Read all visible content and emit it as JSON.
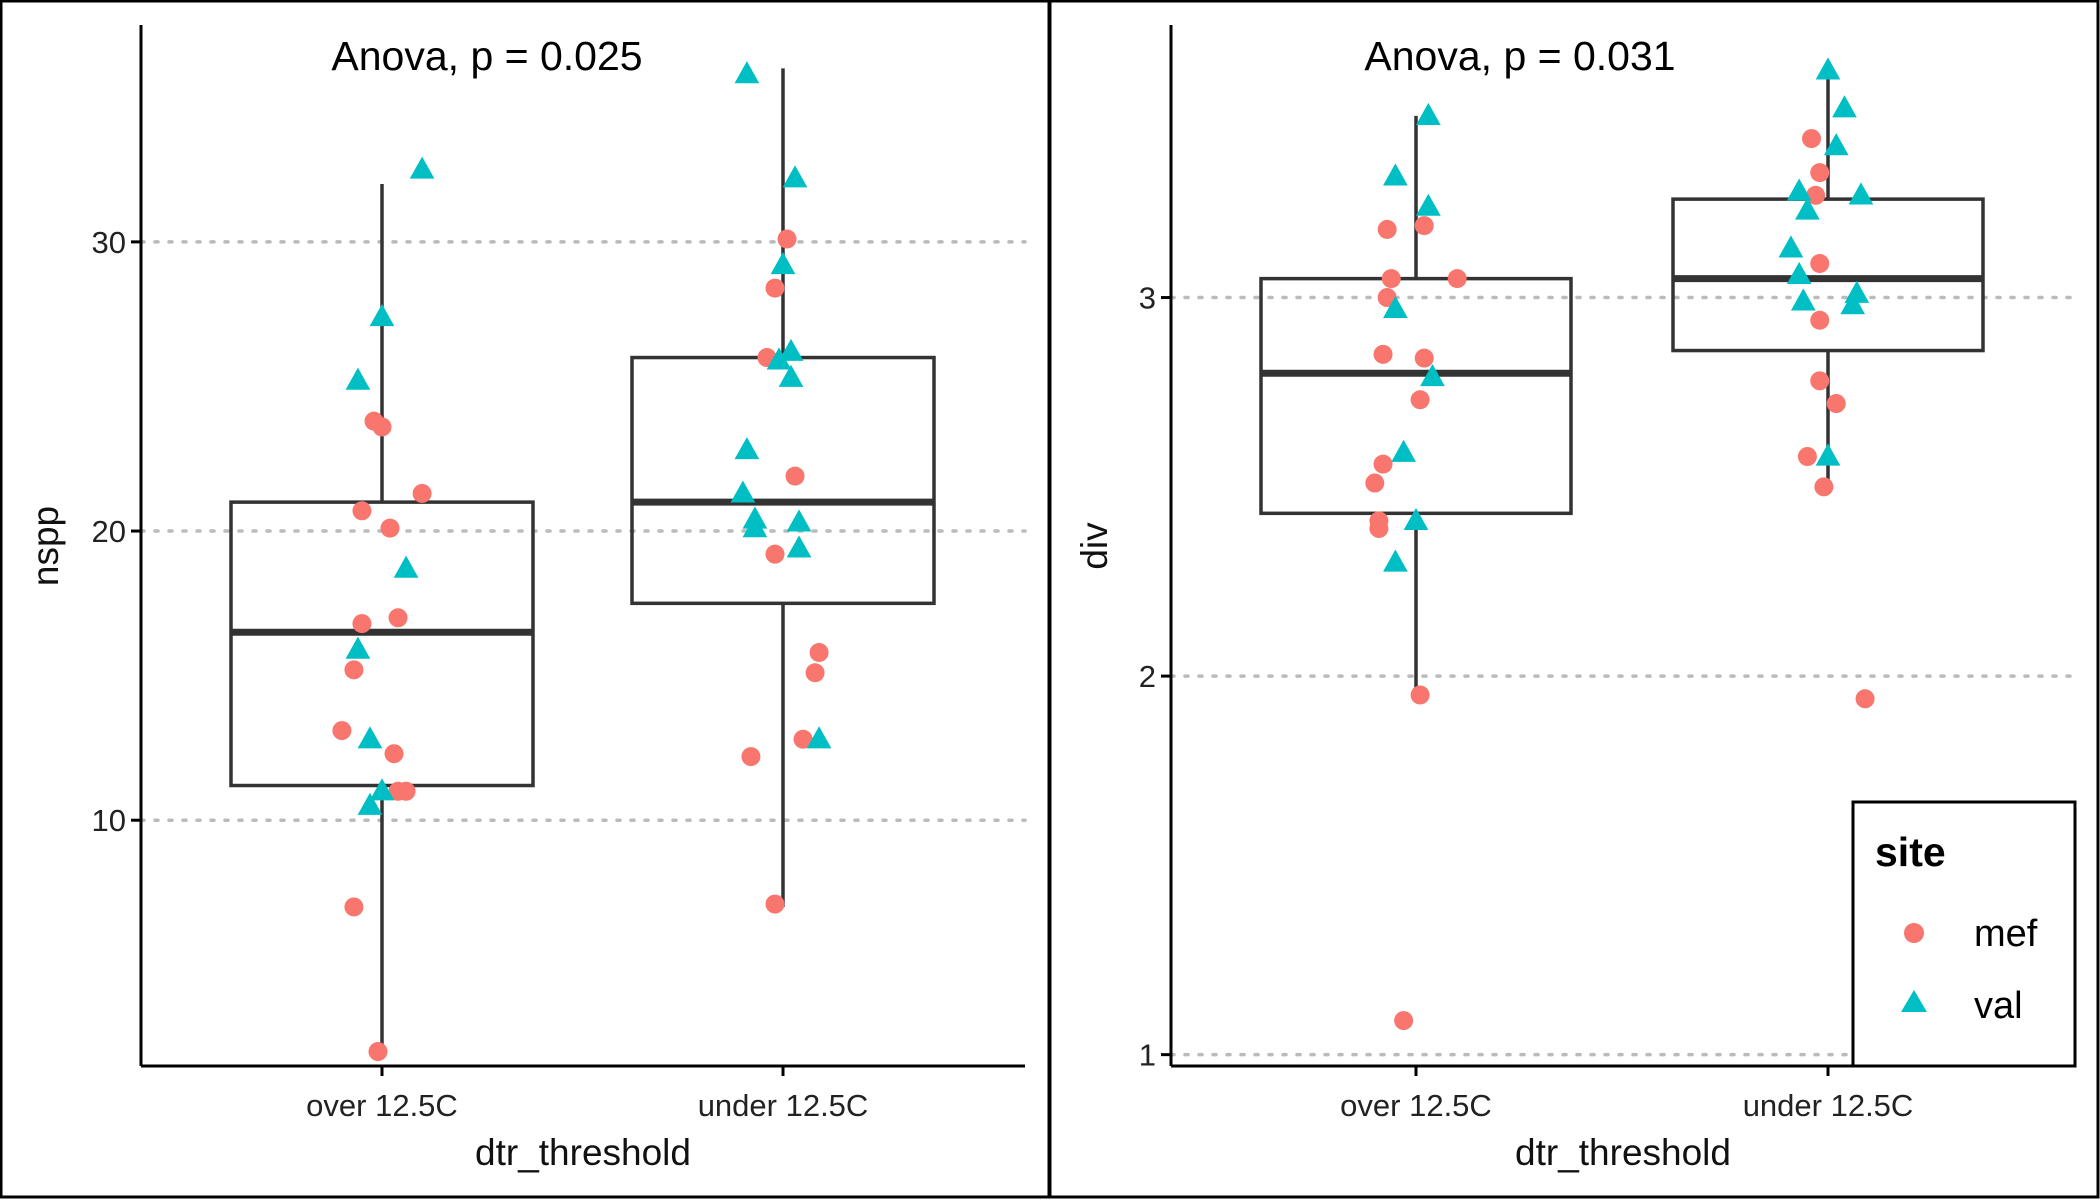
{
  "chart_data": [
    {
      "type": "boxplot",
      "xlabel": "dtr_threshold",
      "ylabel": "nspp",
      "annotation": "Anova, p = 0.025",
      "categories": [
        "over 12.5C",
        "under 12.5C"
      ],
      "y_ticks": [
        "10",
        "20",
        "30"
      ],
      "ylim": [
        1.5,
        37.5
      ],
      "grid_major_y": true,
      "boxes": [
        {
          "category": "over 12.5C",
          "min": 2,
          "q1": 11.2,
          "median": 16.5,
          "q3": 21,
          "max": 32
        },
        {
          "category": "under 12.5C",
          "min": 7,
          "q1": 17.5,
          "median": 21,
          "q3": 26,
          "max": 36
        }
      ],
      "points": [
        {
          "category": "over 12.5C",
          "site": "mef",
          "x_jitter": -0.05,
          "y": 20.7
        },
        {
          "category": "over 12.5C",
          "site": "mef",
          "x_jitter": -0.02,
          "y": 23.8
        },
        {
          "category": "over 12.5C",
          "site": "mef",
          "x_jitter": 0.0,
          "y": 23.6
        },
        {
          "category": "over 12.5C",
          "site": "mef",
          "x_jitter": 0.02,
          "y": 20.1
        },
        {
          "category": "over 12.5C",
          "site": "mef",
          "x_jitter": 0.1,
          "y": 21.3
        },
        {
          "category": "over 12.5C",
          "site": "mef",
          "x_jitter": -0.05,
          "y": 16.8
        },
        {
          "category": "over 12.5C",
          "site": "mef",
          "x_jitter": 0.04,
          "y": 17.0
        },
        {
          "category": "over 12.5C",
          "site": "mef",
          "x_jitter": -0.07,
          "y": 15.2
        },
        {
          "category": "over 12.5C",
          "site": "mef",
          "x_jitter": -0.1,
          "y": 13.1
        },
        {
          "category": "over 12.5C",
          "site": "mef",
          "x_jitter": 0.03,
          "y": 12.3
        },
        {
          "category": "over 12.5C",
          "site": "mef",
          "x_jitter": 0.04,
          "y": 11.0
        },
        {
          "category": "over 12.5C",
          "site": "mef",
          "x_jitter": 0.06,
          "y": 11.0
        },
        {
          "category": "over 12.5C",
          "site": "mef",
          "x_jitter": -0.07,
          "y": 7.0
        },
        {
          "category": "over 12.5C",
          "site": "mef",
          "x_jitter": -0.01,
          "y": 2.0
        },
        {
          "category": "over 12.5C",
          "site": "val",
          "x_jitter": 0.1,
          "y": 32.5
        },
        {
          "category": "over 12.5C",
          "site": "val",
          "x_jitter": 0.0,
          "y": 27.4
        },
        {
          "category": "over 12.5C",
          "site": "val",
          "x_jitter": -0.06,
          "y": 25.2
        },
        {
          "category": "over 12.5C",
          "site": "val",
          "x_jitter": 0.06,
          "y": 18.7
        },
        {
          "category": "over 12.5C",
          "site": "val",
          "x_jitter": -0.06,
          "y": 15.9
        },
        {
          "category": "over 12.5C",
          "site": "val",
          "x_jitter": -0.03,
          "y": 12.8
        },
        {
          "category": "over 12.5C",
          "site": "val",
          "x_jitter": 0.0,
          "y": 11.0
        },
        {
          "category": "over 12.5C",
          "site": "val",
          "x_jitter": -0.03,
          "y": 10.5
        },
        {
          "category": "under 12.5C",
          "site": "mef",
          "x_jitter": 0.01,
          "y": 30.1
        },
        {
          "category": "under 12.5C",
          "site": "mef",
          "x_jitter": -0.02,
          "y": 28.4
        },
        {
          "category": "under 12.5C",
          "site": "mef",
          "x_jitter": -0.04,
          "y": 26.0
        },
        {
          "category": "under 12.5C",
          "site": "mef",
          "x_jitter": 0.03,
          "y": 21.9
        },
        {
          "category": "under 12.5C",
          "site": "mef",
          "x_jitter": -0.02,
          "y": 19.2
        },
        {
          "category": "under 12.5C",
          "site": "mef",
          "x_jitter": 0.09,
          "y": 15.8
        },
        {
          "category": "under 12.5C",
          "site": "mef",
          "x_jitter": 0.08,
          "y": 15.1
        },
        {
          "category": "under 12.5C",
          "site": "mef",
          "x_jitter": 0.05,
          "y": 12.8
        },
        {
          "category": "under 12.5C",
          "site": "mef",
          "x_jitter": -0.08,
          "y": 12.2
        },
        {
          "category": "under 12.5C",
          "site": "mef",
          "x_jitter": -0.02,
          "y": 7.1
        },
        {
          "category": "under 12.5C",
          "site": "val",
          "x_jitter": -0.09,
          "y": 35.8
        },
        {
          "category": "under 12.5C",
          "site": "val",
          "x_jitter": 0.03,
          "y": 32.2
        },
        {
          "category": "under 12.5C",
          "site": "val",
          "x_jitter": 0.0,
          "y": 29.2
        },
        {
          "category": "under 12.5C",
          "site": "val",
          "x_jitter": 0.02,
          "y": 26.2
        },
        {
          "category": "under 12.5C",
          "site": "val",
          "x_jitter": -0.01,
          "y": 25.9
        },
        {
          "category": "under 12.5C",
          "site": "val",
          "x_jitter": 0.02,
          "y": 25.3
        },
        {
          "category": "under 12.5C",
          "site": "val",
          "x_jitter": -0.09,
          "y": 22.8
        },
        {
          "category": "under 12.5C",
          "site": "val",
          "x_jitter": -0.1,
          "y": 21.3
        },
        {
          "category": "under 12.5C",
          "site": "val",
          "x_jitter": -0.07,
          "y": 20.4
        },
        {
          "category": "under 12.5C",
          "site": "val",
          "x_jitter": -0.07,
          "y": 20.1
        },
        {
          "category": "under 12.5C",
          "site": "val",
          "x_jitter": 0.04,
          "y": 20.3
        },
        {
          "category": "under 12.5C",
          "site": "val",
          "x_jitter": 0.04,
          "y": 19.4
        },
        {
          "category": "under 12.5C",
          "site": "val",
          "x_jitter": 0.09,
          "y": 12.8
        }
      ]
    },
    {
      "type": "boxplot",
      "xlabel": "dtr_threshold",
      "ylabel": "div",
      "annotation": "Anova, p = 0.031",
      "categories": [
        "over 12.5C",
        "under 12.5C"
      ],
      "y_ticks": [
        "1",
        "2",
        "3"
      ],
      "ylim": [
        0.97,
        3.72
      ],
      "grid_major_y": true,
      "boxes": [
        {
          "category": "over 12.5C",
          "min": 1.95,
          "q1": 2.43,
          "median": 2.8,
          "q3": 3.05,
          "max": 3.48
        },
        {
          "category": "under 12.5C",
          "min": 2.5,
          "q1": 2.86,
          "median": 3.05,
          "q3": 3.26,
          "max": 3.6
        }
      ],
      "points": [
        {
          "category": "over 12.5C",
          "site": "mef",
          "x_jitter": -0.07,
          "y": 3.18
        },
        {
          "category": "over 12.5C",
          "site": "mef",
          "x_jitter": 0.02,
          "y": 3.19
        },
        {
          "category": "over 12.5C",
          "site": "mef",
          "x_jitter": -0.06,
          "y": 3.05
        },
        {
          "category": "over 12.5C",
          "site": "mef",
          "x_jitter": 0.1,
          "y": 3.05
        },
        {
          "category": "over 12.5C",
          "site": "mef",
          "x_jitter": -0.07,
          "y": 3.0
        },
        {
          "category": "over 12.5C",
          "site": "mef",
          "x_jitter": -0.08,
          "y": 2.85
        },
        {
          "category": "over 12.5C",
          "site": "mef",
          "x_jitter": 0.02,
          "y": 2.84
        },
        {
          "category": "over 12.5C",
          "site": "mef",
          "x_jitter": 0.01,
          "y": 2.73
        },
        {
          "category": "over 12.5C",
          "site": "mef",
          "x_jitter": -0.08,
          "y": 2.56
        },
        {
          "category": "over 12.5C",
          "site": "mef",
          "x_jitter": -0.1,
          "y": 2.51
        },
        {
          "category": "over 12.5C",
          "site": "mef",
          "x_jitter": -0.09,
          "y": 2.41
        },
        {
          "category": "over 12.5C",
          "site": "mef",
          "x_jitter": -0.09,
          "y": 2.39
        },
        {
          "category": "over 12.5C",
          "site": "mef",
          "x_jitter": 0.01,
          "y": 1.95
        },
        {
          "category": "over 12.5C",
          "site": "mef",
          "x_jitter": -0.03,
          "y": 1.09
        },
        {
          "category": "over 12.5C",
          "site": "val",
          "x_jitter": 0.03,
          "y": 3.48
        },
        {
          "category": "over 12.5C",
          "site": "val",
          "x_jitter": -0.05,
          "y": 3.32
        },
        {
          "category": "over 12.5C",
          "site": "val",
          "x_jitter": 0.03,
          "y": 3.24
        },
        {
          "category": "over 12.5C",
          "site": "val",
          "x_jitter": -0.05,
          "y": 2.97
        },
        {
          "category": "over 12.5C",
          "site": "val",
          "x_jitter": 0.04,
          "y": 2.79
        },
        {
          "category": "over 12.5C",
          "site": "val",
          "x_jitter": -0.03,
          "y": 2.59
        },
        {
          "category": "over 12.5C",
          "site": "val",
          "x_jitter": 0.0,
          "y": 2.41
        },
        {
          "category": "over 12.5C",
          "site": "val",
          "x_jitter": -0.05,
          "y": 2.3
        },
        {
          "category": "under 12.5C",
          "site": "mef",
          "x_jitter": -0.04,
          "y": 3.42
        },
        {
          "category": "under 12.5C",
          "site": "mef",
          "x_jitter": -0.02,
          "y": 3.33
        },
        {
          "category": "under 12.5C",
          "site": "mef",
          "x_jitter": -0.03,
          "y": 3.27
        },
        {
          "category": "under 12.5C",
          "site": "mef",
          "x_jitter": -0.02,
          "y": 3.09
        },
        {
          "category": "under 12.5C",
          "site": "mef",
          "x_jitter": -0.02,
          "y": 2.94
        },
        {
          "category": "under 12.5C",
          "site": "mef",
          "x_jitter": -0.02,
          "y": 2.78
        },
        {
          "category": "under 12.5C",
          "site": "mef",
          "x_jitter": 0.02,
          "y": 2.72
        },
        {
          "category": "under 12.5C",
          "site": "mef",
          "x_jitter": -0.05,
          "y": 2.58
        },
        {
          "category": "under 12.5C",
          "site": "mef",
          "x_jitter": -0.01,
          "y": 2.5
        },
        {
          "category": "under 12.5C",
          "site": "mef",
          "x_jitter": 0.09,
          "y": 1.94
        },
        {
          "category": "under 12.5C",
          "site": "val",
          "x_jitter": 0.0,
          "y": 3.6
        },
        {
          "category": "under 12.5C",
          "site": "val",
          "x_jitter": 0.04,
          "y": 3.5
        },
        {
          "category": "under 12.5C",
          "site": "val",
          "x_jitter": 0.02,
          "y": 3.4
        },
        {
          "category": "under 12.5C",
          "site": "val",
          "x_jitter": -0.07,
          "y": 3.28
        },
        {
          "category": "under 12.5C",
          "site": "val",
          "x_jitter": 0.08,
          "y": 3.27
        },
        {
          "category": "under 12.5C",
          "site": "val",
          "x_jitter": -0.05,
          "y": 3.23
        },
        {
          "category": "under 12.5C",
          "site": "val",
          "x_jitter": -0.09,
          "y": 3.13
        },
        {
          "category": "under 12.5C",
          "site": "val",
          "x_jitter": -0.07,
          "y": 3.06
        },
        {
          "category": "under 12.5C",
          "site": "val",
          "x_jitter": 0.07,
          "y": 3.01
        },
        {
          "category": "under 12.5C",
          "site": "val",
          "x_jitter": -0.06,
          "y": 2.99
        },
        {
          "category": "under 12.5C",
          "site": "val",
          "x_jitter": 0.06,
          "y": 2.98
        },
        {
          "category": "under 12.5C",
          "site": "val",
          "x_jitter": 0.0,
          "y": 2.58
        }
      ]
    }
  ],
  "legend": {
    "title": "site",
    "placement": "bottom-right",
    "items": [
      {
        "label": "mef",
        "shape": "circle",
        "color": "#F8766D"
      },
      {
        "label": "val",
        "shape": "triangle",
        "color": "#00BFC4"
      }
    ]
  },
  "colors": {
    "mef": "#F8766D",
    "val": "#00BFC4",
    "box_stroke": "#333333",
    "grid": "#bbbbbb"
  }
}
